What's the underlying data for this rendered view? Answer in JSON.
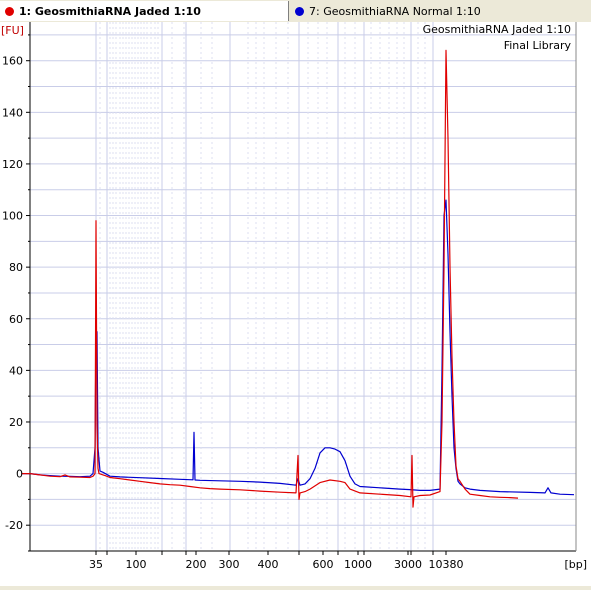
{
  "tabs": [
    {
      "label": "1: GeosmithiaRNA Jaded 1:10",
      "color": "#e00000",
      "active": true
    },
    {
      "label": "7: GeosmithiaRNA Normal 1:10",
      "color": "#0000d0",
      "active": false
    }
  ],
  "chart_data": {
    "type": "line",
    "title": "GeosmithiaRNA Jaded 1:10",
    "subtitle": "Final Library",
    "ylabel": "[FU]",
    "xlabel": "[bp]",
    "ylim": [
      -30,
      175
    ],
    "yticks": [
      -20,
      0,
      20,
      40,
      60,
      80,
      100,
      120,
      140,
      160
    ],
    "xticks": [
      "35",
      "100",
      "200",
      "300",
      "400",
      "600",
      "1000",
      "3000",
      "10380"
    ],
    "grid": true,
    "series": [
      {
        "name": "1: GeosmithiaRNA Jaded 1:10",
        "color": "#e00000",
        "points": [
          [
            22,
            0
          ],
          [
            30,
            0
          ],
          [
            40,
            -0.5
          ],
          [
            50,
            -1
          ],
          [
            60,
            -1.2
          ],
          [
            65,
            -0.5
          ],
          [
            70,
            -1.3
          ],
          [
            80,
            -1.4
          ],
          [
            90,
            -1.5
          ],
          [
            93,
            -1
          ],
          [
            95,
            0
          ],
          [
            96,
            98
          ],
          [
            97,
            20
          ],
          [
            98,
            2
          ],
          [
            99,
            0
          ],
          [
            103,
            -0.5
          ],
          [
            105,
            -0.8
          ],
          [
            110,
            -1.5
          ],
          [
            120,
            -2
          ],
          [
            130,
            -2.5
          ],
          [
            140,
            -3
          ],
          [
            150,
            -3.5
          ],
          [
            160,
            -4
          ],
          [
            170,
            -4.3
          ],
          [
            180,
            -4.5
          ],
          [
            190,
            -5
          ],
          [
            200,
            -5.5
          ],
          [
            210,
            -5.8
          ],
          [
            220,
            -6
          ],
          [
            240,
            -6.3
          ],
          [
            260,
            -6.8
          ],
          [
            280,
            -7.2
          ],
          [
            296,
            -7.5
          ],
          [
            298,
            7
          ],
          [
            299,
            -10
          ],
          [
            300,
            -7.5
          ],
          [
            305,
            -7
          ],
          [
            310,
            -6
          ],
          [
            320,
            -3.5
          ],
          [
            330,
            -2.5
          ],
          [
            340,
            -3
          ],
          [
            345,
            -3.5
          ],
          [
            350,
            -6
          ],
          [
            360,
            -7.5
          ],
          [
            380,
            -8
          ],
          [
            400,
            -8.5
          ],
          [
            411,
            -9
          ],
          [
            412,
            7
          ],
          [
            413,
            -13
          ],
          [
            414,
            -9
          ],
          [
            420,
            -8.5
          ],
          [
            430,
            -8.3
          ],
          [
            440,
            -7
          ],
          [
            442,
            20
          ],
          [
            444,
            80
          ],
          [
            446,
            164
          ],
          [
            448,
            130
          ],
          [
            450,
            80
          ],
          [
            452,
            45
          ],
          [
            454,
            20
          ],
          [
            456,
            3
          ],
          [
            458,
            -2
          ],
          [
            460,
            -3
          ],
          [
            465,
            -6
          ],
          [
            470,
            -8
          ],
          [
            480,
            -8.5
          ],
          [
            490,
            -9
          ],
          [
            500,
            -9.2
          ],
          [
            510,
            -9.3
          ],
          [
            518,
            -9.5
          ]
        ]
      },
      {
        "name": "7: GeosmithiaRNA Normal 1:10",
        "color": "#0000d0",
        "points": [
          [
            22,
            0
          ],
          [
            30,
            0
          ],
          [
            40,
            -0.5
          ],
          [
            50,
            -0.8
          ],
          [
            60,
            -1
          ],
          [
            70,
            -1.1
          ],
          [
            80,
            -1.2
          ],
          [
            90,
            -1
          ],
          [
            93,
            0
          ],
          [
            95,
            10
          ],
          [
            96,
            54
          ],
          [
            97,
            55
          ],
          [
            98,
            10
          ],
          [
            100,
            1
          ],
          [
            103,
            0.5
          ],
          [
            110,
            -1
          ],
          [
            120,
            -1.3
          ],
          [
            140,
            -1.6
          ],
          [
            160,
            -1.9
          ],
          [
            180,
            -2.2
          ],
          [
            193,
            -2.4
          ],
          [
            194,
            16
          ],
          [
            195,
            -2.5
          ],
          [
            200,
            -2.6
          ],
          [
            220,
            -2.8
          ],
          [
            240,
            -3
          ],
          [
            260,
            -3.3
          ],
          [
            280,
            -3.8
          ],
          [
            296,
            -4.5
          ],
          [
            298,
            -2
          ],
          [
            300,
            -4.5
          ],
          [
            305,
            -4
          ],
          [
            310,
            -2
          ],
          [
            315,
            2
          ],
          [
            320,
            8
          ],
          [
            325,
            10
          ],
          [
            330,
            10
          ],
          [
            335,
            9.5
          ],
          [
            340,
            8.5
          ],
          [
            345,
            5
          ],
          [
            350,
            -1
          ],
          [
            355,
            -4
          ],
          [
            360,
            -5
          ],
          [
            380,
            -5.5
          ],
          [
            400,
            -6
          ],
          [
            410,
            -6.2
          ],
          [
            420,
            -6.5
          ],
          [
            430,
            -6.5
          ],
          [
            440,
            -6
          ],
          [
            442,
            40
          ],
          [
            444,
            100
          ],
          [
            446,
            106
          ],
          [
            448,
            85
          ],
          [
            450,
            55
          ],
          [
            452,
            30
          ],
          [
            454,
            10
          ],
          [
            456,
            2
          ],
          [
            458,
            -3
          ],
          [
            460,
            -4
          ],
          [
            465,
            -5.5
          ],
          [
            470,
            -6
          ],
          [
            480,
            -6.5
          ],
          [
            500,
            -7
          ],
          [
            530,
            -7.3
          ],
          [
            545,
            -7.5
          ],
          [
            548,
            -5.5
          ],
          [
            551,
            -7.5
          ],
          [
            560,
            -8
          ],
          [
            574,
            -8.2
          ]
        ]
      }
    ]
  }
}
